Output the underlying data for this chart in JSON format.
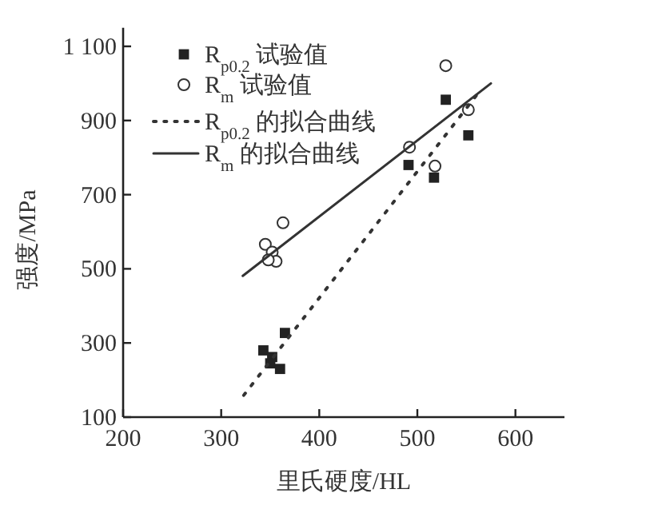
{
  "chart_data": {
    "type": "scatter",
    "xlabel": "里氏硬度/HL",
    "ylabel": "强度/MPa",
    "xlim": [
      200,
      650
    ],
    "ylim": [
      100,
      1150
    ],
    "xticks": [
      200,
      300,
      400,
      500,
      600
    ],
    "yticks": [
      100,
      300,
      500,
      700,
      900,
      {
        "value": 1100,
        "label": "1 100"
      }
    ],
    "legend": "top left",
    "grid": false,
    "series": [
      {
        "name": "R$_{p0.2}$ 试验值",
        "color": "#222222",
        "marker": "square",
        "x": [
          343,
          352,
          350,
          358,
          360,
          365,
          491,
          517,
          529,
          552
        ],
        "values": [
          280,
          262,
          245,
          null,
          230,
          327,
          780,
          746,
          956,
          860
        ]
      },
      {
        "name": "R$_{m}$ 试验值",
        "color": "#333333",
        "marker": "circle",
        "x": [
          345,
          352,
          356,
          348,
          363,
          492,
          518,
          529,
          552
        ],
        "values": [
          566,
          545,
          520,
          524,
          624,
          828,
          777,
          1048,
          929
        ]
      },
      {
        "name": "R$_{p0.2}$ 的拟合曲线",
        "type": "line",
        "color": "#333333",
        "line_style": "dotted",
        "x": [
          323,
          562
        ],
        "values": [
          159,
          974
        ]
      },
      {
        "name": "R$_{m}$ 的拟合曲线",
        "type": "line",
        "color": "#333333",
        "line_style": "solid",
        "x": [
          322,
          575
        ],
        "values": [
          481,
          1000
        ]
      }
    ]
  }
}
